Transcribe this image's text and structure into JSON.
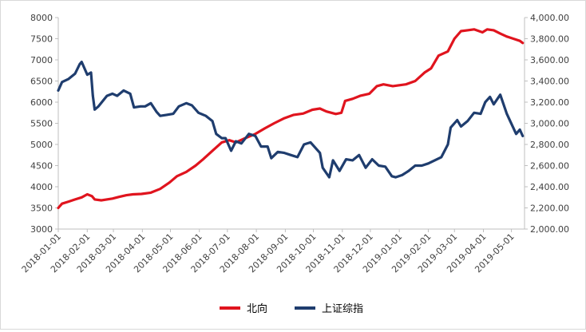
{
  "chart_data": {
    "type": "line",
    "title": "",
    "xlabel": "",
    "ylabel": "",
    "y_left": {
      "min": 3000,
      "max": 8000,
      "ticks": [
        3000,
        3500,
        4000,
        4500,
        5000,
        5500,
        6000,
        6500,
        7000,
        7500,
        8000
      ]
    },
    "y_right": {
      "min": 2000,
      "max": 4000,
      "ticks": [
        2000,
        2200,
        2400,
        2600,
        2800,
        3000,
        3200,
        3400,
        3600,
        3800,
        4000
      ],
      "tick_labels": [
        "2,000.00",
        "2,200.00",
        "2,400.00",
        "2,600.00",
        "2,800.00",
        "3,000.00",
        "3,200.00",
        "3,400.00",
        "3,600.00",
        "3,800.00",
        "4,000.00"
      ]
    },
    "x_range": [
      "2018-01-01",
      "2019-05-15"
    ],
    "x_ticks": [
      "2018-01-01",
      "2018-02-01",
      "2018-03-01",
      "2018-04-01",
      "2018-05-01",
      "2018-06-01",
      "2018-07-01",
      "2018-08-01",
      "2018-09-01",
      "2018-10-01",
      "2018-11-01",
      "2018-12-01",
      "2019-01-01",
      "2019-02-01",
      "2019-03-01",
      "2019-04-01",
      "2019-05-01"
    ],
    "legend_position": "bottom",
    "grid": false,
    "series": [
      {
        "name": "北向",
        "axis": "left",
        "color": "#e0141e",
        "points": [
          [
            "2018-01-01",
            3500
          ],
          [
            "2018-01-05",
            3600
          ],
          [
            "2018-01-12",
            3650
          ],
          [
            "2018-01-19",
            3700
          ],
          [
            "2018-01-26",
            3750
          ],
          [
            "2018-02-01",
            3820
          ],
          [
            "2018-02-06",
            3780
          ],
          [
            "2018-02-09",
            3700
          ],
          [
            "2018-02-16",
            3680
          ],
          [
            "2018-02-28",
            3720
          ],
          [
            "2018-03-07",
            3760
          ],
          [
            "2018-03-15",
            3800
          ],
          [
            "2018-03-22",
            3820
          ],
          [
            "2018-03-31",
            3830
          ],
          [
            "2018-04-10",
            3860
          ],
          [
            "2018-04-20",
            3950
          ],
          [
            "2018-04-30",
            4100
          ],
          [
            "2018-05-08",
            4250
          ],
          [
            "2018-05-18",
            4350
          ],
          [
            "2018-05-28",
            4500
          ],
          [
            "2018-06-05",
            4650
          ],
          [
            "2018-06-15",
            4850
          ],
          [
            "2018-06-25",
            5050
          ],
          [
            "2018-07-03",
            5100
          ],
          [
            "2018-07-10",
            5050
          ],
          [
            "2018-07-20",
            5150
          ],
          [
            "2018-07-31",
            5250
          ],
          [
            "2018-08-10",
            5380
          ],
          [
            "2018-08-20",
            5500
          ],
          [
            "2018-08-31",
            5620
          ],
          [
            "2018-09-10",
            5700
          ],
          [
            "2018-09-20",
            5730
          ],
          [
            "2018-09-30",
            5820
          ],
          [
            "2018-10-08",
            5850
          ],
          [
            "2018-10-15",
            5780
          ],
          [
            "2018-10-25",
            5720
          ],
          [
            "2018-10-31",
            5750
          ],
          [
            "2018-11-04",
            6030
          ],
          [
            "2018-11-12",
            6080
          ],
          [
            "2018-11-20",
            6150
          ],
          [
            "2018-11-30",
            6200
          ],
          [
            "2018-12-08",
            6380
          ],
          [
            "2018-12-15",
            6420
          ],
          [
            "2018-12-25",
            6380
          ],
          [
            "2019-01-08",
            6420
          ],
          [
            "2019-01-18",
            6500
          ],
          [
            "2019-01-28",
            6700
          ],
          [
            "2019-02-04",
            6800
          ],
          [
            "2019-02-12",
            7100
          ],
          [
            "2019-02-22",
            7200
          ],
          [
            "2019-03-01",
            7500
          ],
          [
            "2019-03-08",
            7680
          ],
          [
            "2019-03-15",
            7700
          ],
          [
            "2019-03-22",
            7720
          ],
          [
            "2019-03-31",
            7650
          ],
          [
            "2019-04-05",
            7720
          ],
          [
            "2019-04-12",
            7700
          ],
          [
            "2019-04-19",
            7620
          ],
          [
            "2019-04-26",
            7550
          ],
          [
            "2019-05-03",
            7500
          ],
          [
            "2019-05-10",
            7450
          ],
          [
            "2019-05-13",
            7400
          ]
        ]
      },
      {
        "name": "上证综指",
        "axis": "right",
        "color": "#1f3d6e",
        "points": [
          [
            "2018-01-01",
            3310
          ],
          [
            "2018-01-05",
            3390
          ],
          [
            "2018-01-12",
            3420
          ],
          [
            "2018-01-19",
            3470
          ],
          [
            "2018-01-24",
            3560
          ],
          [
            "2018-01-26",
            3580
          ],
          [
            "2018-01-29",
            3520
          ],
          [
            "2018-02-01",
            3460
          ],
          [
            "2018-02-05",
            3480
          ],
          [
            "2018-02-07",
            3260
          ],
          [
            "2018-02-09",
            3130
          ],
          [
            "2018-02-13",
            3160
          ],
          [
            "2018-02-22",
            3260
          ],
          [
            "2018-02-28",
            3280
          ],
          [
            "2018-03-05",
            3260
          ],
          [
            "2018-03-12",
            3310
          ],
          [
            "2018-03-19",
            3280
          ],
          [
            "2018-03-23",
            3150
          ],
          [
            "2018-03-30",
            3160
          ],
          [
            "2018-04-04",
            3160
          ],
          [
            "2018-04-10",
            3190
          ],
          [
            "2018-04-16",
            3110
          ],
          [
            "2018-04-20",
            3070
          ],
          [
            "2018-04-27",
            3080
          ],
          [
            "2018-05-04",
            3090
          ],
          [
            "2018-05-10",
            3160
          ],
          [
            "2018-05-18",
            3190
          ],
          [
            "2018-05-24",
            3170
          ],
          [
            "2018-05-31",
            3100
          ],
          [
            "2018-06-08",
            3070
          ],
          [
            "2018-06-15",
            3020
          ],
          [
            "2018-06-19",
            2900
          ],
          [
            "2018-06-25",
            2860
          ],
          [
            "2018-06-29",
            2860
          ],
          [
            "2018-07-05",
            2740
          ],
          [
            "2018-07-10",
            2830
          ],
          [
            "2018-07-16",
            2810
          ],
          [
            "2018-07-24",
            2900
          ],
          [
            "2018-07-31",
            2880
          ],
          [
            "2018-08-06",
            2780
          ],
          [
            "2018-08-13",
            2780
          ],
          [
            "2018-08-17",
            2670
          ],
          [
            "2018-08-24",
            2730
          ],
          [
            "2018-08-31",
            2720
          ],
          [
            "2018-09-07",
            2700
          ],
          [
            "2018-09-14",
            2680
          ],
          [
            "2018-09-21",
            2800
          ],
          [
            "2018-09-28",
            2820
          ],
          [
            "2018-10-08",
            2720
          ],
          [
            "2018-10-11",
            2580
          ],
          [
            "2018-10-18",
            2490
          ],
          [
            "2018-10-22",
            2650
          ],
          [
            "2018-10-29",
            2550
          ],
          [
            "2018-11-05",
            2660
          ],
          [
            "2018-11-12",
            2650
          ],
          [
            "2018-11-19",
            2700
          ],
          [
            "2018-11-26",
            2580
          ],
          [
            "2018-12-03",
            2660
          ],
          [
            "2018-12-10",
            2600
          ],
          [
            "2018-12-17",
            2590
          ],
          [
            "2018-12-24",
            2500
          ],
          [
            "2018-12-28",
            2490
          ],
          [
            "2019-01-04",
            2510
          ],
          [
            "2019-01-11",
            2550
          ],
          [
            "2019-01-18",
            2600
          ],
          [
            "2019-01-25",
            2600
          ],
          [
            "2019-02-01",
            2620
          ],
          [
            "2019-02-15",
            2680
          ],
          [
            "2019-02-22",
            2800
          ],
          [
            "2019-02-25",
            2960
          ],
          [
            "2019-03-04",
            3030
          ],
          [
            "2019-03-08",
            2970
          ],
          [
            "2019-03-15",
            3020
          ],
          [
            "2019-03-22",
            3100
          ],
          [
            "2019-03-29",
            3090
          ],
          [
            "2019-04-03",
            3200
          ],
          [
            "2019-04-08",
            3250
          ],
          [
            "2019-04-12",
            3180
          ],
          [
            "2019-04-19",
            3270
          ],
          [
            "2019-04-26",
            3090
          ],
          [
            "2019-05-06",
            2900
          ],
          [
            "2019-05-10",
            2940
          ],
          [
            "2019-05-13",
            2880
          ]
        ]
      }
    ]
  }
}
